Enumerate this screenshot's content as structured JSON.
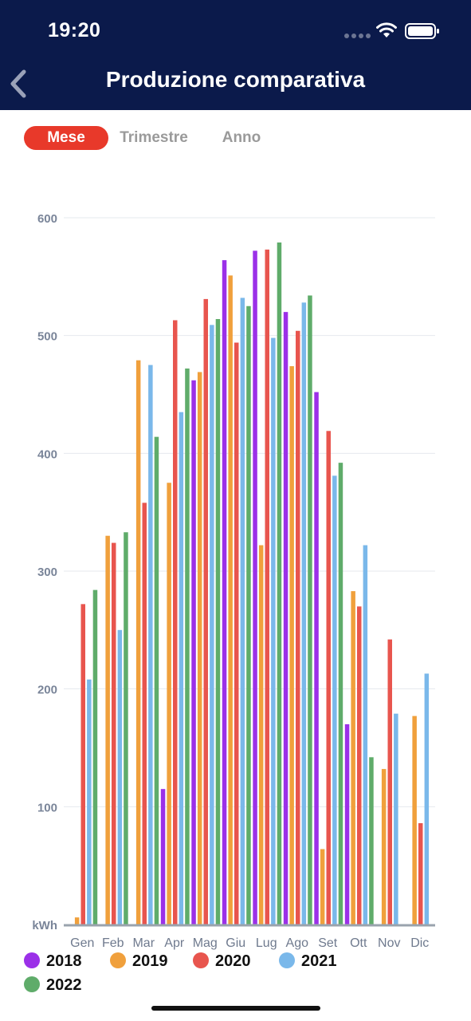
{
  "status_bar": {
    "time": "19:20"
  },
  "header": {
    "title": "Produzione comparativa"
  },
  "tabs": [
    {
      "label": "Mese",
      "active": true
    },
    {
      "label": "Trimestre",
      "active": false
    },
    {
      "label": "Anno",
      "active": false
    }
  ],
  "colors": {
    "header_bg": "#0b1a4b",
    "accent": "#e8392a"
  },
  "chart_data": {
    "type": "bar",
    "title": "",
    "xlabel": "",
    "ylabel": "kWh",
    "ylim": [
      0,
      600
    ],
    "yticks": [
      100,
      200,
      300,
      400,
      500,
      600
    ],
    "grid": true,
    "legend_position": "bottom",
    "categories": [
      "Gen",
      "Feb",
      "Mar",
      "Apr",
      "Mag",
      "Giu",
      "Lug",
      "Ago",
      "Set",
      "Ott",
      "Nov",
      "Dic"
    ],
    "series": [
      {
        "name": "2018",
        "color": "#9b30e8",
        "values": [
          0,
          0,
          0,
          115,
          462,
          564,
          572,
          520,
          452,
          170,
          0,
          0
        ]
      },
      {
        "name": "2019",
        "color": "#f0a03c",
        "values": [
          6,
          330,
          479,
          375,
          469,
          551,
          322,
          474,
          64,
          283,
          132,
          177
        ]
      },
      {
        "name": "2020",
        "color": "#e8554e",
        "values": [
          272,
          324,
          358,
          513,
          531,
          494,
          573,
          504,
          419,
          270,
          242,
          86
        ]
      },
      {
        "name": "2021",
        "color": "#7ab8ea",
        "values": [
          208,
          250,
          475,
          435,
          509,
          532,
          498,
          528,
          381,
          322,
          179,
          213
        ]
      },
      {
        "name": "2022",
        "color": "#5fac6a",
        "values": [
          284,
          333,
          414,
          472,
          514,
          525,
          579,
          534,
          392,
          142,
          0,
          0
        ]
      }
    ]
  }
}
